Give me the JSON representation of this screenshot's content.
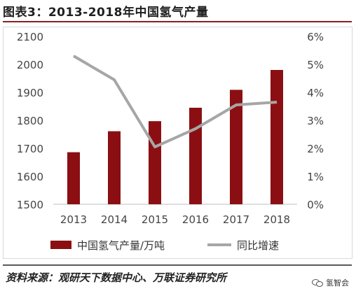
{
  "title": "图表3：2013-2018年中国氢气产量",
  "source": "资料来源：观研天下数据中心、万联证券研究所",
  "watermark": "氢智会",
  "colors": {
    "bar": "#8b0f12",
    "line": "#a6a6a6",
    "axis_text": "#444444"
  },
  "chart_data": {
    "type": "bar",
    "categories": [
      "2013",
      "2014",
      "2015",
      "2016",
      "2017",
      "2018"
    ],
    "series": [
      {
        "name": "中国氢气产量/万吨",
        "type": "bar",
        "axis": "left",
        "values": [
          1686,
          1761,
          1797,
          1845,
          1909,
          1980
        ]
      },
      {
        "name": "同比增速",
        "type": "line",
        "axis": "right",
        "values": [
          0.053,
          0.0445,
          0.0205,
          0.027,
          0.0355,
          0.0365
        ]
      }
    ],
    "y_left": {
      "min": 1500,
      "max": 2100,
      "ticks": [
        "1500",
        "1600",
        "1700",
        "1800",
        "1900",
        "2000",
        "2100"
      ]
    },
    "y_right": {
      "min": 0,
      "max": 0.06,
      "ticks": [
        "0%",
        "1%",
        "2%",
        "3%",
        "4%",
        "5%",
        "6%"
      ]
    },
    "grid": false,
    "legend_position": "bottom"
  }
}
